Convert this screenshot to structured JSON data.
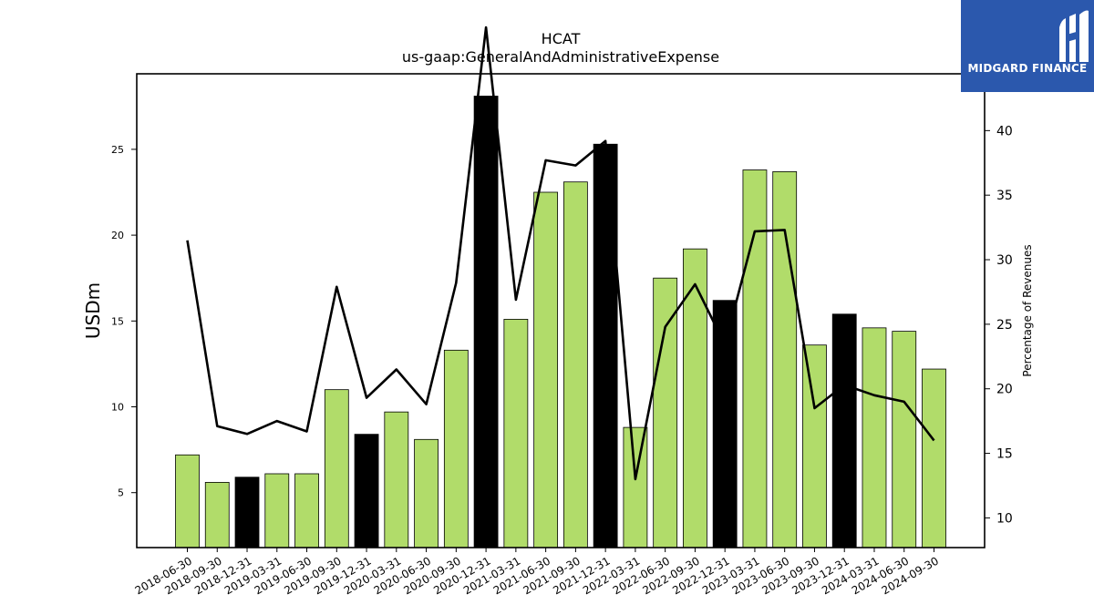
{
  "brand": {
    "name": "MIDGARD FINANCE",
    "bg_color": "#2b58ad",
    "icon": "midgard-logo-icon"
  },
  "chart_data": {
    "type": "bar",
    "title": "HCAT",
    "subtitle": "us-gaap:GeneralAndAdministrativeExpense",
    "ylabel": "USDm",
    "y2label": "Percentage of Revenues",
    "ylim": [
      1.8,
      29.4
    ],
    "y2lim": [
      7.7,
      44.4
    ],
    "yticks": [
      5,
      10,
      15,
      20,
      25
    ],
    "y2ticks": [
      10,
      15,
      20,
      25,
      30,
      35,
      40
    ],
    "categories": [
      "2018-06-30",
      "2018-09-30",
      "2018-12-31",
      "2019-03-31",
      "2019-06-30",
      "2019-09-30",
      "2019-12-31",
      "2020-03-31",
      "2020-06-30",
      "2020-09-30",
      "2020-12-31",
      "2021-03-31",
      "2021-06-30",
      "2021-09-30",
      "2021-12-31",
      "2022-03-31",
      "2022-06-30",
      "2022-09-30",
      "2022-12-31",
      "2023-03-31",
      "2023-06-30",
      "2023-09-30",
      "2023-12-31",
      "2024-03-31",
      "2024-06-30",
      "2024-09-30"
    ],
    "series": [
      {
        "type": "bar",
        "axis": "left",
        "values": [
          7.2,
          5.6,
          5.9,
          6.1,
          6.1,
          11.0,
          8.4,
          9.7,
          8.1,
          13.3,
          28.1,
          15.1,
          22.5,
          23.1,
          25.3,
          8.8,
          17.5,
          19.2,
          16.2,
          23.8,
          23.7,
          13.6,
          15.4,
          14.6,
          14.4,
          12.2
        ],
        "quarter_end": [
          false,
          false,
          true,
          false,
          false,
          false,
          true,
          false,
          false,
          false,
          true,
          false,
          false,
          false,
          true,
          false,
          false,
          false,
          true,
          false,
          false,
          false,
          true,
          false,
          false,
          false
        ]
      },
      {
        "type": "line",
        "axis": "right",
        "values": [
          31.5,
          17.1,
          16.5,
          17.5,
          16.7,
          27.9,
          19.3,
          21.5,
          18.8,
          28.2,
          48.0,
          26.9,
          37.7,
          37.3,
          39.2,
          13.0,
          24.8,
          28.1,
          23.4,
          32.2,
          32.3,
          18.5,
          20.3,
          19.5,
          19.0,
          16.0
        ]
      }
    ],
    "colors": {
      "bar": "#b1dc6a",
      "bar_quarter_end": "#000000",
      "bar_edge": "#000000",
      "line": "#000000"
    },
    "grid": false
  }
}
